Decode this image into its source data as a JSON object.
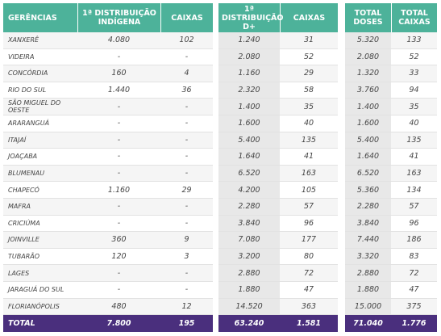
{
  "headers": {
    "gerencias": "GERÊNCIAS",
    "dist_indigena_1": "1ª DISTRIBUIÇÃO",
    "dist_indigena_2": "INDÍGENA",
    "caixas": "CAIXAS",
    "dist_d_1": "1ª",
    "dist_d_2": "DISTRIBUIÇÃO",
    "dist_d_3": "D+",
    "total_doses_1": "TOTAL",
    "total_doses_2": "DOSES",
    "total_caixas_1": "TOTAL",
    "total_caixas_2": "CAIXAS"
  },
  "rows": [
    {
      "name": "Xanxerê",
      "ind": "4.080",
      "indcx": "102",
      "d": "1.240",
      "dcx": "31",
      "tot": "5.320",
      "totcx": "133"
    },
    {
      "name": "Videira",
      "ind": "-",
      "indcx": "-",
      "d": "2.080",
      "dcx": "52",
      "tot": "2.080",
      "totcx": "52"
    },
    {
      "name": "Concórdia",
      "ind": "160",
      "indcx": "4",
      "d": "1.160",
      "dcx": "29",
      "tot": "1.320",
      "totcx": "33"
    },
    {
      "name": "Rio do Sul",
      "ind": "1.440",
      "indcx": "36",
      "d": "2.320",
      "dcx": "58",
      "tot": "3.760",
      "totcx": "94"
    },
    {
      "name": "São Miguel do Oeste",
      "ind": "-",
      "indcx": "-",
      "d": "1.400",
      "dcx": "35",
      "tot": "1.400",
      "totcx": "35"
    },
    {
      "name": "Araranguá",
      "ind": "-",
      "indcx": "-",
      "d": "1.600",
      "dcx": "40",
      "tot": "1.600",
      "totcx": "40"
    },
    {
      "name": "Itajaí",
      "ind": "-",
      "indcx": "-",
      "d": "5.400",
      "dcx": "135",
      "tot": "5.400",
      "totcx": "135"
    },
    {
      "name": "Joaçaba",
      "ind": "-",
      "indcx": "-",
      "d": "1.640",
      "dcx": "41",
      "tot": "1.640",
      "totcx": "41"
    },
    {
      "name": "Blumenau",
      "ind": "-",
      "indcx": "-",
      "d": "6.520",
      "dcx": "163",
      "tot": "6.520",
      "totcx": "163"
    },
    {
      "name": "Chapecó",
      "ind": "1.160",
      "indcx": "29",
      "d": "4.200",
      "dcx": "105",
      "tot": "5.360",
      "totcx": "134"
    },
    {
      "name": "Mafra",
      "ind": "-",
      "indcx": "-",
      "d": "2.280",
      "dcx": "57",
      "tot": "2.280",
      "totcx": "57"
    },
    {
      "name": "Criciúma",
      "ind": "-",
      "indcx": "-",
      "d": "3.840",
      "dcx": "96",
      "tot": "3.840",
      "totcx": "96"
    },
    {
      "name": "Joinville",
      "ind": "360",
      "indcx": "9",
      "d": "7.080",
      "dcx": "177",
      "tot": "7.440",
      "totcx": "186"
    },
    {
      "name": "Tubarão",
      "ind": "120",
      "indcx": "3",
      "d": "3.200",
      "dcx": "80",
      "tot": "3.320",
      "totcx": "83"
    },
    {
      "name": "Lages",
      "ind": "-",
      "indcx": "-",
      "d": "2.880",
      "dcx": "72",
      "tot": "2.880",
      "totcx": "72"
    },
    {
      "name": "Jaraguá do Sul",
      "ind": "-",
      "indcx": "-",
      "d": "1.880",
      "dcx": "47",
      "tot": "1.880",
      "totcx": "47"
    },
    {
      "name": "Florianópolis",
      "ind": "480",
      "indcx": "12",
      "d": "14.520",
      "dcx": "363",
      "tot": "15.000",
      "totcx": "375"
    }
  ],
  "total": {
    "label": "TOTAL",
    "ind": "7.800",
    "indcx": "195",
    "d": "63.240",
    "dcx": "1.581",
    "tot": "71.040",
    "totcx": "1.776"
  },
  "colors": {
    "header": "#4db29a",
    "total": "#4a2f7d"
  }
}
